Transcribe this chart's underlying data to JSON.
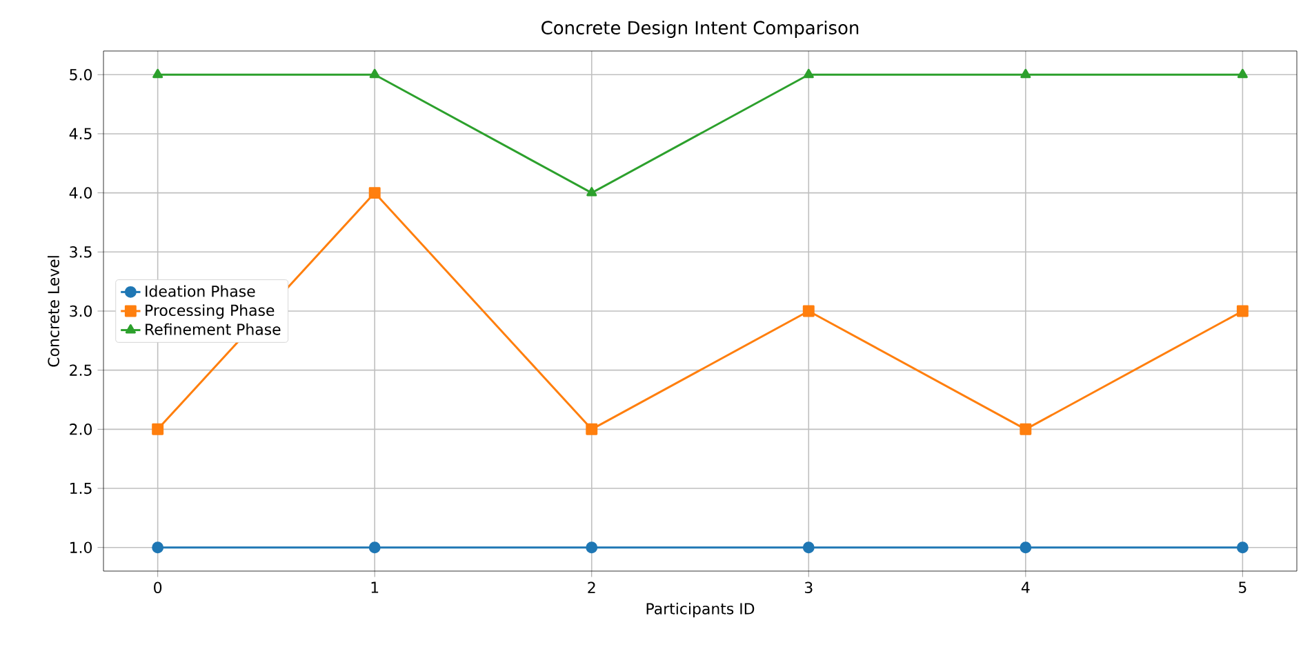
{
  "chart_data": {
    "type": "line",
    "title": "Concrete Design Intent Comparison",
    "xlabel": "Participants ID",
    "ylabel": "Concrete Level",
    "x": [
      0,
      1,
      2,
      3,
      4,
      5
    ],
    "series": [
      {
        "name": "Ideation Phase",
        "color": "#1f77b4",
        "marker": "circle",
        "values": [
          1,
          1,
          1,
          1,
          1,
          1
        ]
      },
      {
        "name": "Processing Phase",
        "color": "#ff7f0e",
        "marker": "square",
        "values": [
          2,
          4,
          2,
          3,
          2,
          3
        ]
      },
      {
        "name": "Refinement Phase",
        "color": "#2ca02c",
        "marker": "triangle",
        "values": [
          5,
          5,
          4,
          5,
          5,
          5
        ]
      }
    ],
    "xlim": [
      -0.25,
      5.25
    ],
    "ylim": [
      0.8,
      5.2
    ],
    "xticks": [
      0,
      1,
      2,
      3,
      4,
      5
    ],
    "yticks": [
      {
        "value": 1,
        "label": "1.0"
      },
      {
        "value": 1.5,
        "label": "1.5"
      },
      {
        "value": 2,
        "label": "2.0"
      },
      {
        "value": 2.5,
        "label": "2.5"
      },
      {
        "value": 3,
        "label": "3.0"
      },
      {
        "value": 3.5,
        "label": "3.5"
      },
      {
        "value": 4,
        "label": "4.0"
      },
      {
        "value": 4.5,
        "label": "4.5"
      },
      {
        "value": 5,
        "label": "5.0"
      }
    ],
    "grid": true,
    "legend": "left",
    "line_style": "solid"
  }
}
